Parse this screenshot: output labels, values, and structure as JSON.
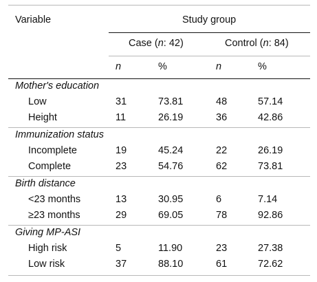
{
  "header": {
    "variable": "Variable",
    "study_group": "Study group",
    "case_label": "Case",
    "case_n_label": "n",
    "case_n_value": ": 42",
    "control_label": "Control",
    "control_n_label": "n",
    "control_n_value": ": 84",
    "col_n1": "n",
    "col_pct1": "%",
    "col_n2": "n",
    "col_pct2": "%"
  },
  "sections": [
    {
      "title": "Mother's education",
      "rows": [
        {
          "label": "Low",
          "case_n": "31",
          "case_pct": "73.81",
          "control_n": "48",
          "control_pct": "57.14"
        },
        {
          "label": "Height",
          "case_n": "11",
          "case_pct": "26.19",
          "control_n": "36",
          "control_pct": "42.86"
        }
      ]
    },
    {
      "title": "Immunization status",
      "rows": [
        {
          "label": "Incomplete",
          "case_n": "19",
          "case_pct": "45.24",
          "control_n": "22",
          "control_pct": "26.19"
        },
        {
          "label": "Complete",
          "case_n": "23",
          "case_pct": "54.76",
          "control_n": "62",
          "control_pct": "73.81"
        }
      ]
    },
    {
      "title": "Birth distance",
      "rows": [
        {
          "label": "<23 months",
          "case_n": "13",
          "case_pct": "30.95",
          "control_n": "6",
          "control_pct": "7.14"
        },
        {
          "label": "≥23 months",
          "case_n": "29",
          "case_pct": "69.05",
          "control_n": "78",
          "control_pct": "92.86"
        }
      ]
    },
    {
      "title": "Giving MP-ASI",
      "rows": [
        {
          "label": "High risk",
          "case_n": "5",
          "case_pct": "11.90",
          "control_n": "23",
          "control_pct": "27.38"
        },
        {
          "label": "Low risk",
          "case_n": "37",
          "case_pct": "88.10",
          "control_n": "61",
          "control_pct": "72.62"
        }
      ]
    }
  ]
}
